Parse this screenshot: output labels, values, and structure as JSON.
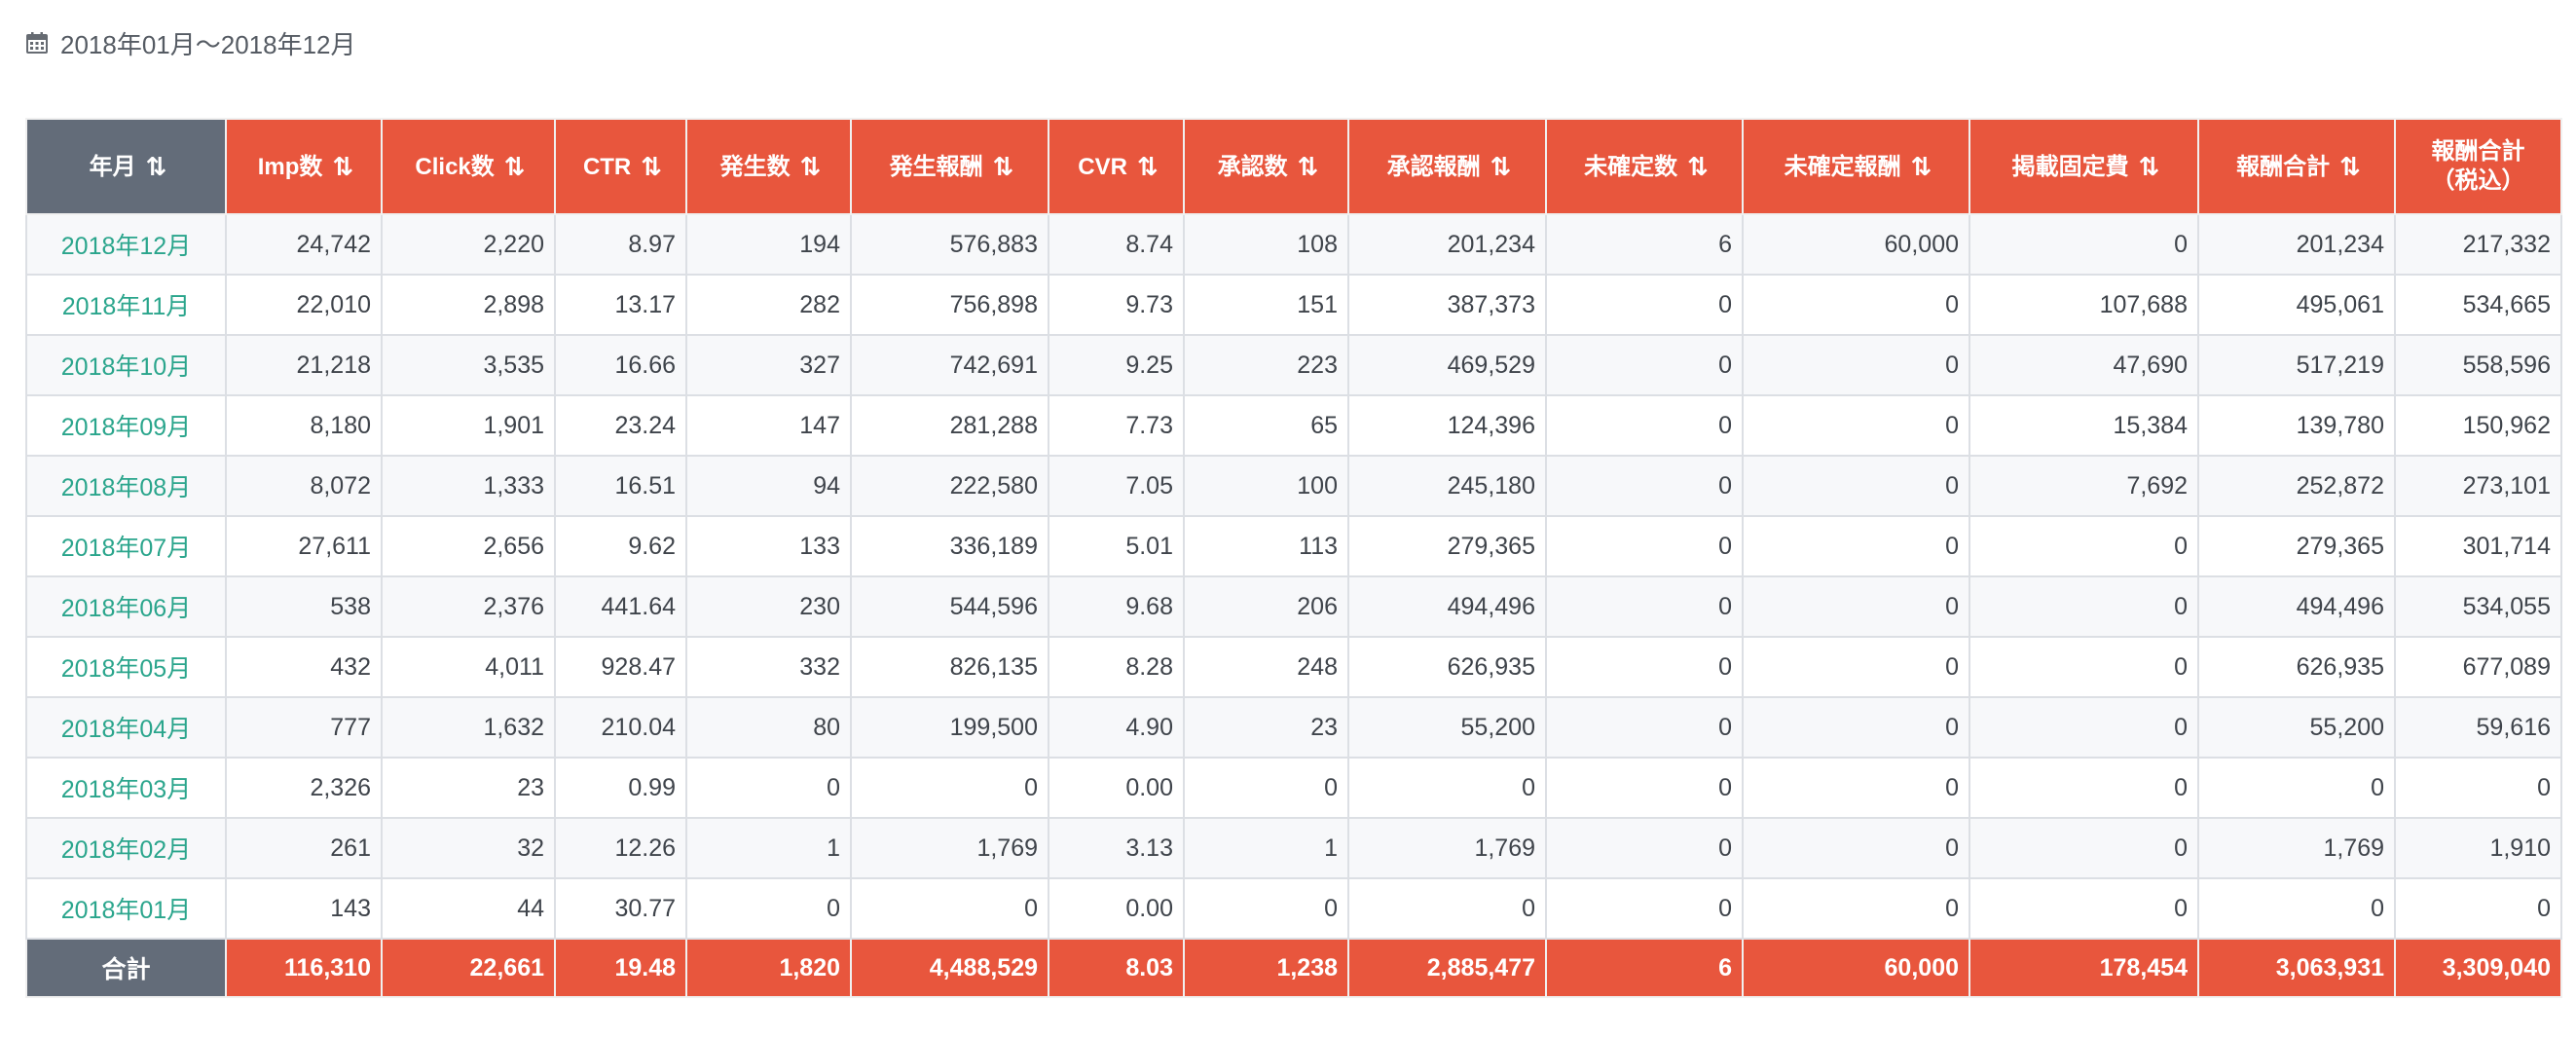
{
  "period": {
    "icon": "calendar-icon",
    "label": "2018年01月〜2018年12月"
  },
  "colors": {
    "header_accent": "#e8563d",
    "header_first": "#636c79",
    "month_link": "#2aa58c"
  },
  "sort_icon": "⇅",
  "table": {
    "headers": [
      {
        "label": "年月",
        "sort_icon": "sort-desc-icon"
      },
      {
        "label": "Imp数",
        "sort_icon": "sort-icon"
      },
      {
        "label": "Click数",
        "sort_icon": "sort-icon"
      },
      {
        "label": "CTR",
        "sort_icon": "sort-icon"
      },
      {
        "label": "発生数",
        "sort_icon": "sort-icon"
      },
      {
        "label": "発生報酬",
        "sort_icon": "sort-icon"
      },
      {
        "label": "CVR",
        "sort_icon": "sort-icon"
      },
      {
        "label": "承認数",
        "sort_icon": "sort-icon"
      },
      {
        "label": "承認報酬",
        "sort_icon": "sort-icon"
      },
      {
        "label": "未確定数",
        "sort_icon": "sort-icon"
      },
      {
        "label": "未確定報酬",
        "sort_icon": "sort-icon"
      },
      {
        "label": "掲載固定費",
        "sort_icon": "sort-icon"
      },
      {
        "label": "報酬合計",
        "sort_icon": "sort-icon"
      },
      {
        "label": "報酬合計",
        "label2": "（税込）"
      }
    ],
    "rows": [
      [
        "2018年12月",
        "24,742",
        "2,220",
        "8.97",
        "194",
        "576,883",
        "8.74",
        "108",
        "201,234",
        "6",
        "60,000",
        "0",
        "201,234",
        "217,332"
      ],
      [
        "2018年11月",
        "22,010",
        "2,898",
        "13.17",
        "282",
        "756,898",
        "9.73",
        "151",
        "387,373",
        "0",
        "0",
        "107,688",
        "495,061",
        "534,665"
      ],
      [
        "2018年10月",
        "21,218",
        "3,535",
        "16.66",
        "327",
        "742,691",
        "9.25",
        "223",
        "469,529",
        "0",
        "0",
        "47,690",
        "517,219",
        "558,596"
      ],
      [
        "2018年09月",
        "8,180",
        "1,901",
        "23.24",
        "147",
        "281,288",
        "7.73",
        "65",
        "124,396",
        "0",
        "0",
        "15,384",
        "139,780",
        "150,962"
      ],
      [
        "2018年08月",
        "8,072",
        "1,333",
        "16.51",
        "94",
        "222,580",
        "7.05",
        "100",
        "245,180",
        "0",
        "0",
        "7,692",
        "252,872",
        "273,101"
      ],
      [
        "2018年07月",
        "27,611",
        "2,656",
        "9.62",
        "133",
        "336,189",
        "5.01",
        "113",
        "279,365",
        "0",
        "0",
        "0",
        "279,365",
        "301,714"
      ],
      [
        "2018年06月",
        "538",
        "2,376",
        "441.64",
        "230",
        "544,596",
        "9.68",
        "206",
        "494,496",
        "0",
        "0",
        "0",
        "494,496",
        "534,055"
      ],
      [
        "2018年05月",
        "432",
        "4,011",
        "928.47",
        "332",
        "826,135",
        "8.28",
        "248",
        "626,935",
        "0",
        "0",
        "0",
        "626,935",
        "677,089"
      ],
      [
        "2018年04月",
        "777",
        "1,632",
        "210.04",
        "80",
        "199,500",
        "4.90",
        "23",
        "55,200",
        "0",
        "0",
        "0",
        "55,200",
        "59,616"
      ],
      [
        "2018年03月",
        "2,326",
        "23",
        "0.99",
        "0",
        "0",
        "0.00",
        "0",
        "0",
        "0",
        "0",
        "0",
        "0",
        "0"
      ],
      [
        "2018年02月",
        "261",
        "32",
        "12.26",
        "1",
        "1,769",
        "3.13",
        "1",
        "1,769",
        "0",
        "0",
        "0",
        "1,769",
        "1,910"
      ],
      [
        "2018年01月",
        "143",
        "44",
        "30.77",
        "0",
        "0",
        "0.00",
        "0",
        "0",
        "0",
        "0",
        "0",
        "0",
        "0"
      ]
    ],
    "totals": [
      "合計",
      "116,310",
      "22,661",
      "19.48",
      "1,820",
      "4,488,529",
      "8.03",
      "1,238",
      "2,885,477",
      "6",
      "60,000",
      "178,454",
      "3,063,931",
      "3,309,040"
    ]
  }
}
